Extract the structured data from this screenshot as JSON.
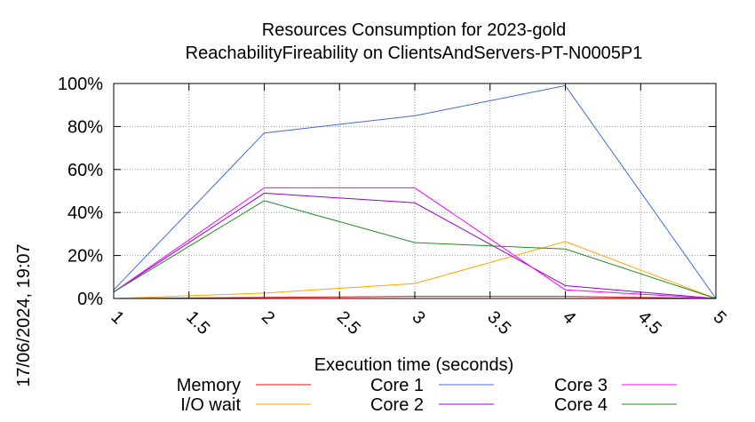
{
  "chart_data": {
    "type": "line",
    "title_lines": [
      "Resources Consumption for 2023-gold",
      "ReachabilityFireability on ClientsAndServers-PT-N0005P1"
    ],
    "xlabel": "Execution time (seconds)",
    "ylabel": "",
    "timestamp": "17/06/2024, 19:07",
    "xlim": [
      1,
      5
    ],
    "ylim": [
      0,
      100
    ],
    "x_ticks": [
      {
        "value": 1,
        "label": "1"
      },
      {
        "value": 1.5,
        "label": "1.5"
      },
      {
        "value": 2,
        "label": "2"
      },
      {
        "value": 2.5,
        "label": "2.5"
      },
      {
        "value": 3,
        "label": "3"
      },
      {
        "value": 3.5,
        "label": "3.5"
      },
      {
        "value": 4,
        "label": "4"
      },
      {
        "value": 4.5,
        "label": "4.5"
      },
      {
        "value": 5,
        "label": "5"
      }
    ],
    "y_ticks": [
      {
        "value": 0,
        "label": "0%"
      },
      {
        "value": 20,
        "label": "20%"
      },
      {
        "value": 40,
        "label": "40%"
      },
      {
        "value": 60,
        "label": "60%"
      },
      {
        "value": 80,
        "label": "80%"
      },
      {
        "value": 100,
        "label": "100%"
      }
    ],
    "grid": true,
    "legend_position": "bottom",
    "series": [
      {
        "name": "Memory",
        "color": "#ff0000",
        "x": [
          1,
          2,
          3,
          4,
          5
        ],
        "y": [
          0,
          0.5,
          1,
          1,
          0
        ]
      },
      {
        "name": "I/O wait",
        "color": "#ffa500",
        "x": [
          1,
          2,
          3,
          4,
          5
        ],
        "y": [
          0,
          2.5,
          7,
          26.5,
          0
        ]
      },
      {
        "name": "Core 1",
        "color": "#4169e1",
        "x": [
          1,
          2,
          3,
          4,
          5
        ],
        "y": [
          4,
          77,
          85,
          99,
          0
        ]
      },
      {
        "name": "Core 2",
        "color": "#9400d3",
        "x": [
          1,
          2,
          3,
          4,
          5
        ],
        "y": [
          3,
          49,
          44.5,
          6,
          0
        ]
      },
      {
        "name": "Core 3",
        "color": "#ff00ff",
        "x": [
          1,
          2,
          3,
          4,
          5
        ],
        "y": [
          3,
          51.5,
          51.5,
          4,
          0
        ]
      },
      {
        "name": "Core 4",
        "color": "#228b22",
        "x": [
          1,
          2,
          3,
          4,
          5
        ],
        "y": [
          3,
          45.5,
          26,
          23,
          0
        ]
      }
    ]
  }
}
